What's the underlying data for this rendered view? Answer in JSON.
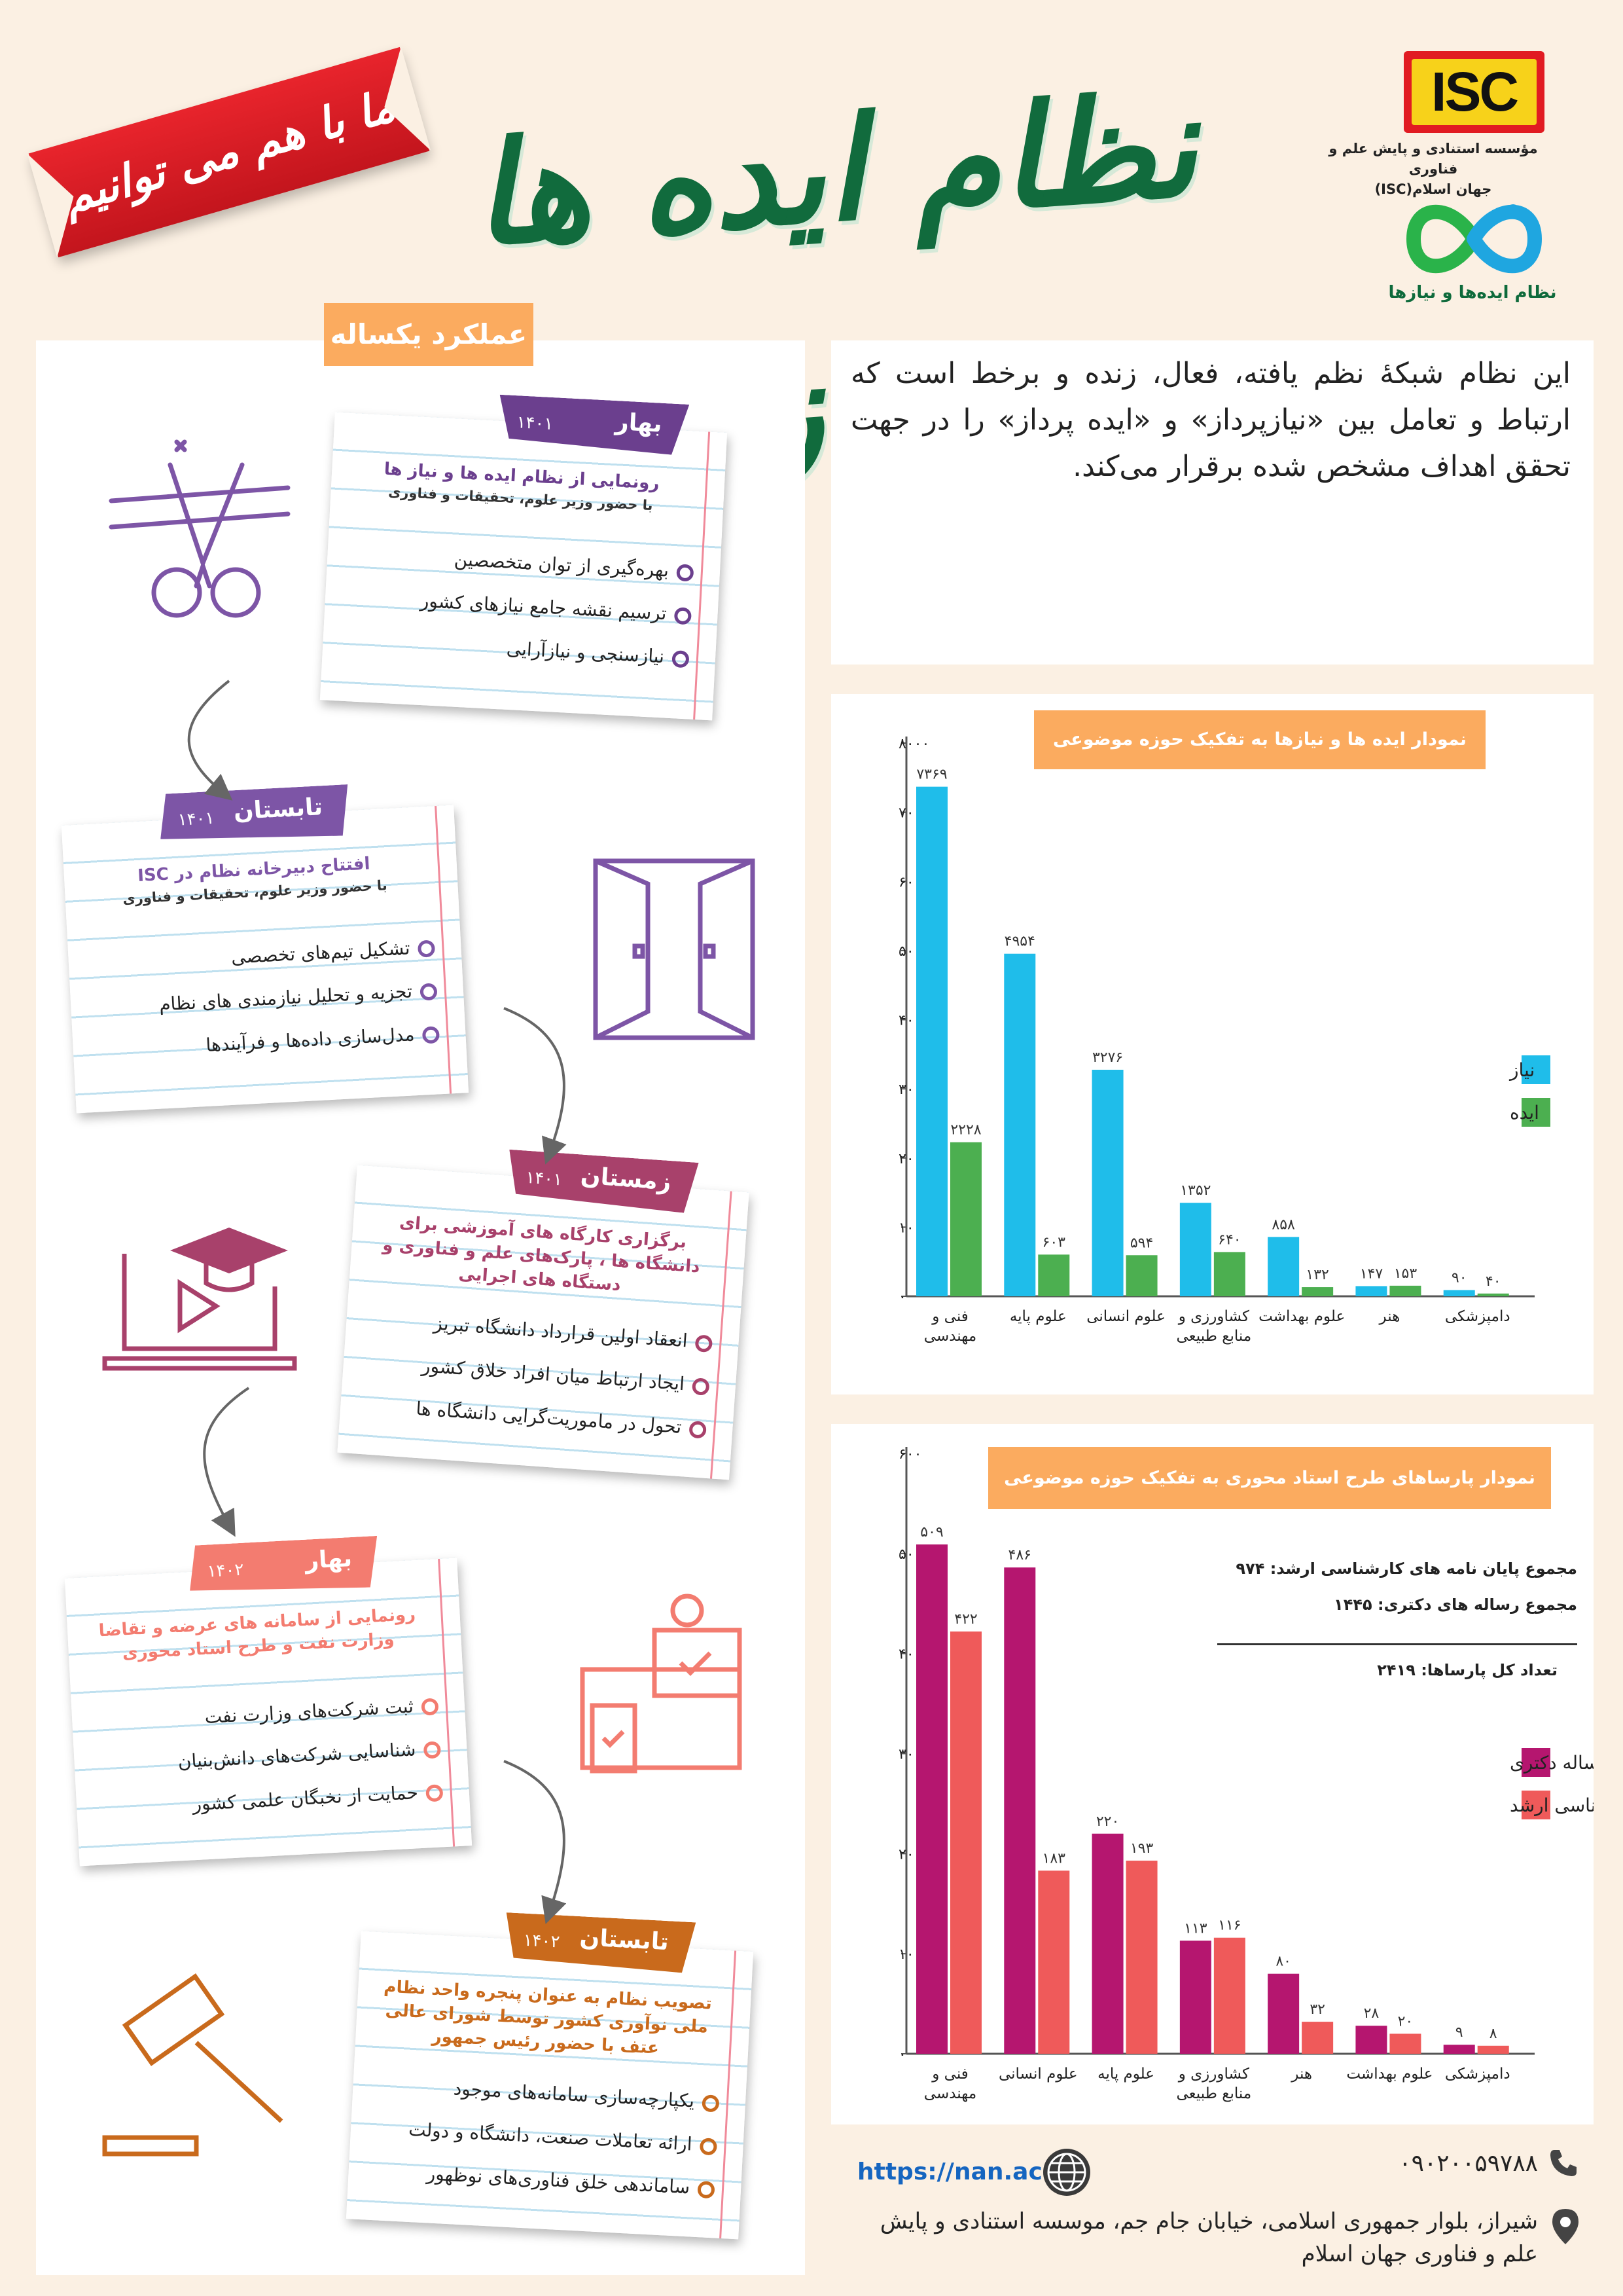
{
  "header": {
    "title": "نظام ایده ها و نیازها",
    "ribbon_text": "ما با هم می توانیم",
    "isc_logo_text": "ISC",
    "org_name_line1": "مؤسسه استنادی و پایش علم و فناوری",
    "org_name_line2": "جهان اسلام(ISC)",
    "nan_logo_caption": "نظام ایده‌ها و نیازها"
  },
  "timeline": {
    "tab_label": "عملکرد یکساله",
    "cards": [
      {
        "season": "بهار",
        "year": "۱۴۰۱",
        "headline": "رونمایی از نظام ایده ها و نیاز ها",
        "subline": "با حضور وزیر علوم، تحقیقات و فناوری",
        "items": [
          "بهره‌گیری از توان متخصصین",
          "ترسیم نقشه جامع نیازهای کشور",
          "نیازسنجی و نیازآرایی"
        ]
      },
      {
        "season": "تابستان",
        "year": "۱۴۰۱",
        "headline": "افتتاح دبیرخانه نظام در ISC",
        "subline": "با حضور وزیر علوم، تحقیقات و فناوری",
        "items": [
          "تشکیل تیم‌های تخصصی",
          "تجزیه و تحلیل نیازمندی های نظام",
          "مدل‌سازی داده‌ها و فرآیندها"
        ]
      },
      {
        "season": "زمستان",
        "year": "۱۴۰۱",
        "headline": "برگزاری کارگاه های آموزشی برای دانشگاه ها ، پارک‌های علم و فناوری و دستگاه های اجرایی",
        "subline": "",
        "items": [
          "انعقاد اولین قرارداد دانشگاه تبریز",
          "ایجاد ارتباط میان افراد خلاق کشور",
          "تحول در ماموریت‌گرایی دانشگاه ها"
        ]
      },
      {
        "season": "بهار",
        "year": "۱۴۰۲",
        "headline": "رونمایی از سامانه های عرضه و تقاضا وزارت نفت و طرح استاد محوری",
        "subline": "",
        "items": [
          "ثبت شرکت‌های وزارت نفت",
          "شناسایی شرکت‌های دانش‌بنیان",
          "حمایت از نخبگان علمی کشور"
        ]
      },
      {
        "season": "تابستان",
        "year": "۱۴۰۲",
        "headline": "تصویب نظام به عنوان پنجره واحد نظام ملی نوآوری کشور توسط شورای عالی عتف با حضور رئیس جمهور",
        "subline": "",
        "items": [
          "یکپارچه‌سازی سامانه‌های موجود",
          "ارائه تعاملات صنعت، دانشگاه و دولت",
          "ساماندهی خلق فناوری‌های نوظهور"
        ]
      }
    ]
  },
  "intro": {
    "text": "این نظام شبکۀ نظم یافته، فعال، زنده و برخط است که ارتباط و تعامل بین «نیازپرداز» و «ایده پرداز» را در جهت تحقق اهداف مشخص شده برقرار می‌کند."
  },
  "chart_data": [
    {
      "type": "bar",
      "title": "نمودار ایده ها و نیازها به تفکیک حوزه موضوعی",
      "categories": [
        "فنی و مهندسی",
        "علوم پایه",
        "علوم انسانی",
        "کشاورزی و منابع طبیعی",
        "علوم بهداشت",
        "هنر",
        "دامپزشکی"
      ],
      "series": [
        {
          "name": "نیاز",
          "color": "#1fbdea",
          "values": [
            7369,
            4954,
            3276,
            1352,
            858,
            147,
            90
          ]
        },
        {
          "name": "ایده",
          "color": "#4caf50",
          "values": [
            2228,
            603,
            594,
            640,
            132,
            153,
            40
          ]
        }
      ],
      "value_labels": {
        "نیاز": [
          "۷۳۶۹",
          "۴۹۵۴",
          "۳۲۷۶",
          "۱۳۵۲",
          "۸۵۸",
          "۱۴۷",
          "۹۰"
        ],
        "ایده": [
          "۲۲۲۸",
          "۶۰۳",
          "۵۹۴",
          "۶۴۰",
          "۱۳۲",
          "۱۵۳",
          "۴۰"
        ]
      },
      "ylim": [
        0,
        8000
      ],
      "yticks": [
        "۰",
        "۱۰۰۰",
        "۲۰۰۰",
        "۳۰۰۰",
        "۴۰۰۰",
        "۵۰۰۰",
        "۶۰۰۰",
        "۷۰۰۰",
        "۸۰۰۰"
      ],
      "legend_position": "right",
      "grid": false
    },
    {
      "type": "bar",
      "title": "نمودار پارساهای طرح استاد محوری به تفکیک حوزه موضوعی",
      "categories": [
        "فنی و مهندسی",
        "علوم انسانی",
        "علوم پایه",
        "کشاورزی و منابع طبیعی",
        "هنر",
        "علوم بهداشت",
        "دامپزشکی"
      ],
      "series": [
        {
          "name": "رساله دکتری",
          "color": "#b5166f",
          "values": [
            509,
            486,
            220,
            113,
            80,
            28,
            9
          ]
        },
        {
          "name": "پایان نامه کارشناسی ارشد",
          "color": "#ef5a5a",
          "values": [
            422,
            183,
            193,
            116,
            32,
            20,
            8
          ]
        }
      ],
      "value_labels": {
        "رساله دکتری": [
          "۵۰۹",
          "۴۸۶",
          "۲۲۰",
          "۱۱۳",
          "۸۰",
          "۲۸",
          "۹"
        ],
        "پایان نامه کارشناسی ارشد": [
          "۴۲۲",
          "۱۸۳",
          "۱۹۳",
          "۱۱۶",
          "۳۲",
          "۲۰",
          "۸"
        ]
      },
      "ylim": [
        0,
        600
      ],
      "yticks": [
        "۰",
        "۱۰۰",
        "۲۰۰",
        "۳۰۰",
        "۴۰۰",
        "۵۰۰",
        "۶۰۰"
      ],
      "legend_position": "right",
      "grid": false,
      "annotations": [
        "مجموع پایان نامه های کارشناسی ارشد: ۹۷۴",
        "مجموع رساله های دکتری: ۱۴۴۵",
        "تعداد کل پارساها: ۲۴۱۹"
      ]
    }
  ],
  "footer": {
    "website": "https://nan.ac",
    "phone": "۰۹۰۲۰۰۵۹۷۸۸",
    "address": "شیراز، بلوار جمهوری اسلامی، خیابان جام جم، موسسه استنادی و پایش علم و فناوری جهان اسلام"
  },
  "colors": {
    "title_green": "#116b3d",
    "accent_orange": "#fbab5f",
    "card_purple": "#6b3f8e",
    "card_violet": "#7d55a6",
    "card_rose": "#a8416b",
    "card_salmon": "#f37c70",
    "card_amber": "#c96a1c"
  },
  "icons": [
    "scissors-ribbon-icon",
    "open-door-icon",
    "video-course-icon",
    "devices-approval-icon",
    "gavel-icon",
    "globe-icon",
    "phone-icon",
    "location-pin-icon"
  ]
}
